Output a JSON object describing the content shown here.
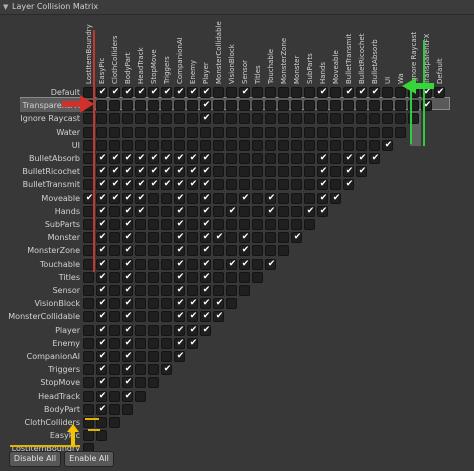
{
  "panel": {
    "title": "Layer Collision Matrix"
  },
  "layers": [
    "Default",
    "TransparentFX",
    "Ignore Raycast",
    "Water",
    "UI",
    "BulletAbsorb",
    "BulletRicochet",
    "BulletTransmit",
    "Moveable",
    "Hands",
    "SubParts",
    "Monster",
    "MonsterZone",
    "Touchable",
    "Titles",
    "Sensor",
    "VisionBlock",
    "MonsterCollidable",
    "Player",
    "Enemy",
    "CompanionAI",
    "Triggers",
    "StopMove",
    "HeadTrack",
    "BodyPart",
    "ClothColliders",
    "EasyPickup",
    "LostItemBoundry"
  ],
  "column_label_overrides": {
    "EasyPickup": "EasyPic",
    "LostItemBoundry": "LostItemBoundry",
    "Water": "Wa"
  },
  "row_label_overrides": {
    "EasyPickup": "EasyPic",
    "LostItemBoundry": "LostItemBoundry"
  },
  "selected_layer": "TransparentFX",
  "checked": [
    [
      0,
      0
    ],
    [
      0,
      1
    ],
    [
      0,
      5
    ],
    [
      0,
      6
    ],
    [
      0,
      7
    ],
    [
      0,
      9
    ],
    [
      0,
      15
    ],
    [
      0,
      18
    ],
    [
      0,
      19
    ],
    [
      0,
      20
    ],
    [
      0,
      21
    ],
    [
      0,
      22
    ],
    [
      0,
      23
    ],
    [
      0,
      24
    ],
    [
      0,
      25
    ],
    [
      0,
      26
    ],
    [
      1,
      1
    ],
    [
      1,
      18
    ],
    [
      2,
      18
    ],
    [
      4,
      4
    ],
    [
      5,
      5
    ],
    [
      5,
      6
    ],
    [
      5,
      7
    ],
    [
      5,
      9
    ],
    [
      5,
      18
    ],
    [
      5,
      19
    ],
    [
      5,
      20
    ],
    [
      5,
      21
    ],
    [
      5,
      22
    ],
    [
      5,
      23
    ],
    [
      5,
      24
    ],
    [
      5,
      25
    ],
    [
      5,
      26
    ],
    [
      6,
      6
    ],
    [
      6,
      7
    ],
    [
      6,
      9
    ],
    [
      6,
      18
    ],
    [
      6,
      19
    ],
    [
      6,
      20
    ],
    [
      6,
      21
    ],
    [
      6,
      22
    ],
    [
      6,
      23
    ],
    [
      6,
      24
    ],
    [
      6,
      25
    ],
    [
      6,
      26
    ],
    [
      7,
      7
    ],
    [
      7,
      9
    ],
    [
      7,
      18
    ],
    [
      7,
      19
    ],
    [
      7,
      20
    ],
    [
      7,
      21
    ],
    [
      7,
      22
    ],
    [
      7,
      23
    ],
    [
      7,
      24
    ],
    [
      7,
      25
    ],
    [
      7,
      26
    ],
    [
      8,
      8
    ],
    [
      8,
      9
    ],
    [
      8,
      13
    ],
    [
      8,
      15
    ],
    [
      8,
      18
    ],
    [
      8,
      20
    ],
    [
      8,
      23
    ],
    [
      8,
      24
    ],
    [
      8,
      25
    ],
    [
      8,
      26
    ],
    [
      8,
      27
    ],
    [
      9,
      9
    ],
    [
      9,
      10
    ],
    [
      9,
      13
    ],
    [
      9,
      16
    ],
    [
      9,
      18
    ],
    [
      9,
      20
    ],
    [
      9,
      23
    ],
    [
      9,
      24
    ],
    [
      9,
      26
    ],
    [
      10,
      18
    ],
    [
      10,
      20
    ],
    [
      10,
      24
    ],
    [
      10,
      26
    ],
    [
      11,
      11
    ],
    [
      11,
      15
    ],
    [
      11,
      17
    ],
    [
      11,
      18
    ],
    [
      11,
      20
    ],
    [
      11,
      24
    ],
    [
      11,
      26
    ],
    [
      12,
      15
    ],
    [
      12,
      18
    ],
    [
      12,
      20
    ],
    [
      12,
      24
    ],
    [
      12,
      26
    ],
    [
      13,
      13
    ],
    [
      13,
      15
    ],
    [
      13,
      16
    ],
    [
      13,
      18
    ],
    [
      13,
      20
    ],
    [
      13,
      24
    ],
    [
      13,
      26
    ],
    [
      14,
      18
    ],
    [
      14,
      20
    ],
    [
      14,
      24
    ],
    [
      14,
      26
    ],
    [
      15,
      18
    ],
    [
      15,
      20
    ],
    [
      15,
      24
    ],
    [
      15,
      26
    ],
    [
      16,
      17
    ],
    [
      16,
      18
    ],
    [
      16,
      19
    ],
    [
      16,
      20
    ],
    [
      16,
      24
    ],
    [
      16,
      26
    ],
    [
      17,
      17
    ],
    [
      17,
      18
    ],
    [
      17,
      19
    ],
    [
      17,
      20
    ],
    [
      17,
      24
    ],
    [
      17,
      26
    ],
    [
      18,
      18
    ],
    [
      18,
      19
    ],
    [
      18,
      20
    ],
    [
      18,
      24
    ],
    [
      18,
      26
    ],
    [
      19,
      19
    ],
    [
      19,
      20
    ],
    [
      19,
      24
    ],
    [
      19,
      26
    ],
    [
      20,
      20
    ],
    [
      20,
      24
    ],
    [
      20,
      26
    ],
    [
      21,
      21
    ],
    [
      21,
      24
    ],
    [
      21,
      26
    ],
    [
      22,
      24
    ],
    [
      22,
      26
    ],
    [
      23,
      24
    ],
    [
      23,
      26
    ],
    [
      24,
      26
    ]
  ],
  "buttons": {
    "disable_all": "Disable All",
    "enable_all": "Enable All"
  },
  "icons": {
    "collapse": "▼",
    "check": "✔"
  },
  "annotation_colors": {
    "red": "#c0392b",
    "green": "#2ecc40",
    "yellow": "#e1b400"
  }
}
